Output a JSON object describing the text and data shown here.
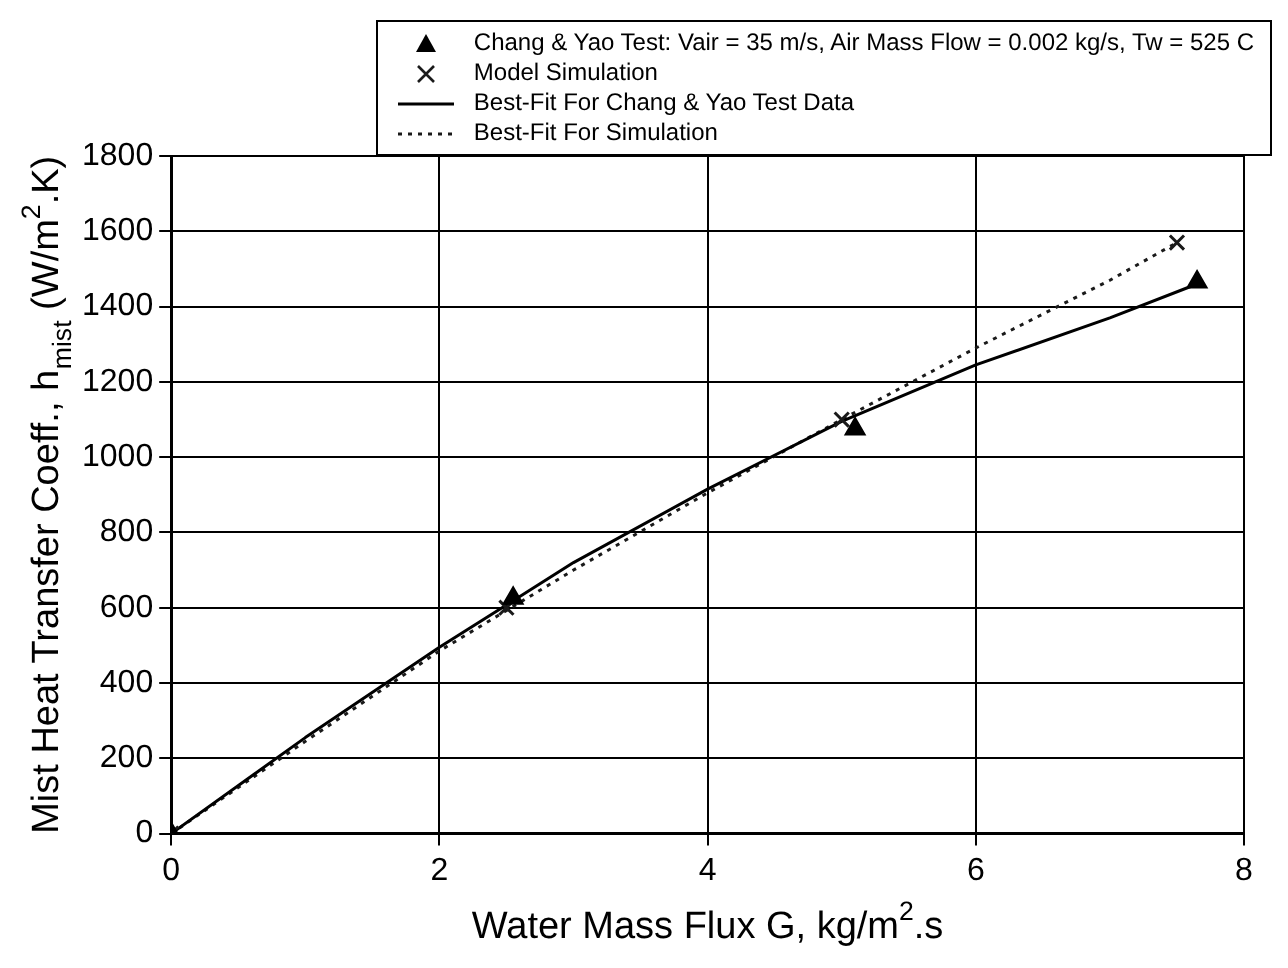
{
  "chart_data": {
    "type": "scatter",
    "xlabel": "Water Mass Flux G, kg/m$^{2}$.s",
    "ylabel": "Mist Heat Transfer Coeff., h$_{mist}$ (W/m$^{2}$.K)",
    "xlim": [
      0,
      8
    ],
    "xticks": [
      0,
      2,
      4,
      6,
      8
    ],
    "ylim": [
      0,
      1800
    ],
    "yticks": [
      0,
      200,
      400,
      600,
      800,
      1000,
      1200,
      1400,
      1600,
      1800
    ],
    "grid": true,
    "legend": "top right",
    "series": [
      {
        "name": "Chang & Yao Test:  Vair = 35 m/s, Air Mass Flow = 0.002 kg/s, Tw = 525 C",
        "type": "scatter",
        "marker": "triangle",
        "color": "#000000",
        "x": [
          0,
          2.55,
          5.1,
          7.65
        ],
        "values": [
          0,
          625,
          1075,
          1465
        ]
      },
      {
        "name": "Model Simulation",
        "type": "scatter",
        "marker": "cross",
        "color": "#1a1a1a",
        "x": [
          0,
          2.5,
          5,
          7.5
        ],
        "values": [
          0,
          600,
          1100,
          1570
        ]
      },
      {
        "name": "Best-Fit For Chang & Yao Test Data",
        "type": "line",
        "line_style": "solid",
        "color": "#000000",
        "x": [
          0,
          1,
          2,
          3,
          4,
          5,
          6,
          7,
          7.65
        ],
        "values": [
          0,
          255,
          495,
          720,
          915,
          1095,
          1245,
          1370,
          1460
        ]
      },
      {
        "name": "Best-Fit For Simulation",
        "type": "line",
        "line_style": "dotted",
        "color": "#1a1a1a",
        "x": [
          0,
          1,
          2,
          3,
          4,
          5,
          6,
          7,
          7.5
        ],
        "values": [
          0,
          245,
          485,
          700,
          905,
          1100,
          1290,
          1470,
          1570
        ]
      }
    ]
  }
}
